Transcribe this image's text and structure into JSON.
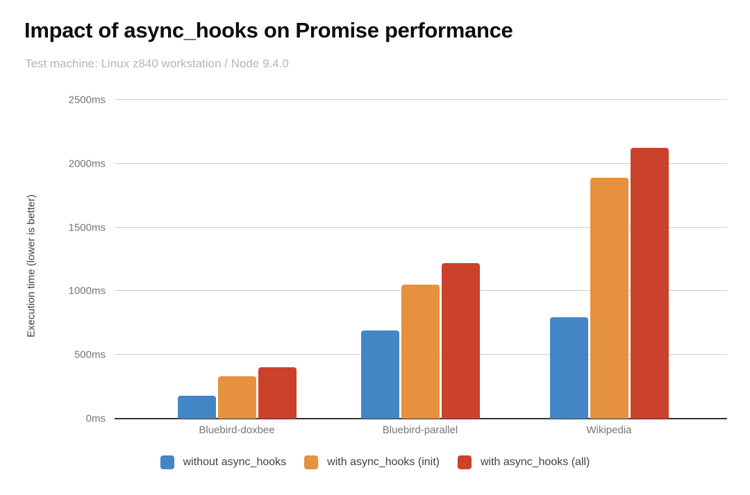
{
  "chart_data": {
    "type": "bar",
    "title": "Impact of async_hooks on Promise performance",
    "subtitle": "Test machine: Linux z840 workstation / Node 9.4.0",
    "ylabel": "Execution time (lower is better)",
    "xlabel": "",
    "categories": [
      "Bluebird-doxbee",
      "Bluebird-parallel",
      "Wikipedia"
    ],
    "series": [
      {
        "name": "without async_hooks",
        "color": "#4386c6",
        "values": [
          180,
          690,
          795
        ]
      },
      {
        "name": "with async_hooks (init)",
        "color": "#e5913e",
        "values": [
          335,
          1050,
          1890
        ]
      },
      {
        "name": "with async_hooks (all)",
        "color": "#cb422c",
        "values": [
          405,
          1220,
          2125
        ]
      }
    ],
    "ylim": [
      0,
      2500
    ],
    "ytick_step": 500,
    "ytick_suffix": "ms",
    "grid": "horizontal",
    "gridline_color": "#cccccc",
    "axis_line_color": "#333333",
    "legend_position": "bottom-center"
  }
}
